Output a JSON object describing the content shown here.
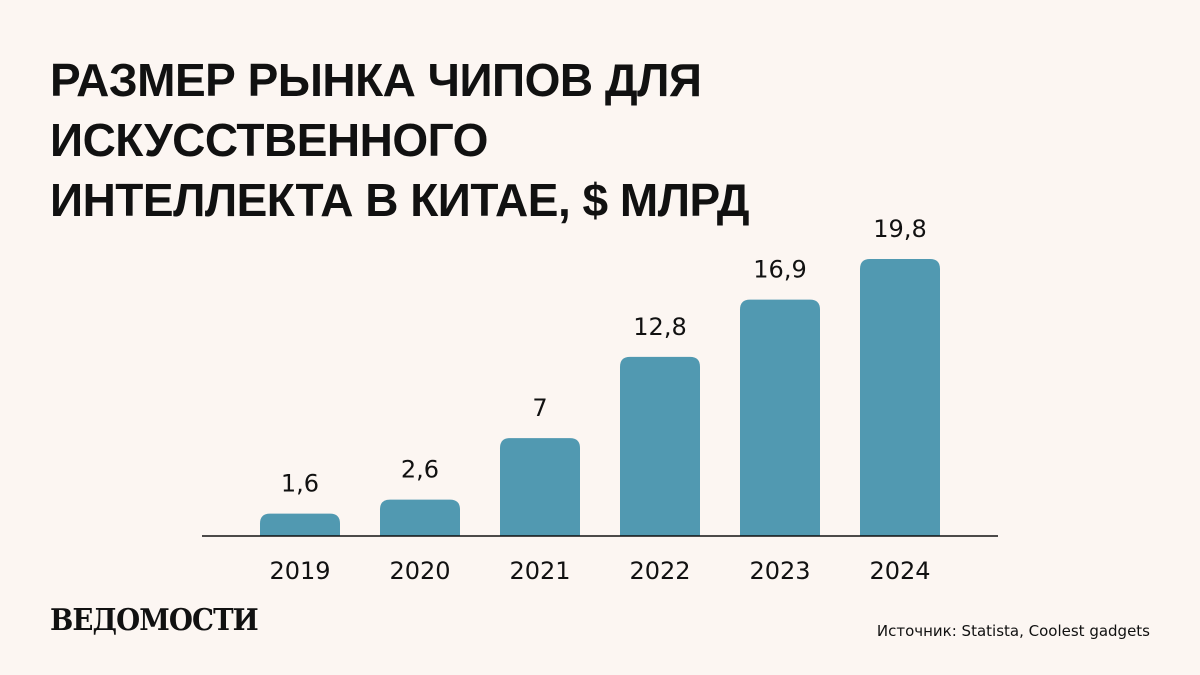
{
  "header": {
    "title_line1": "РАЗМЕР РЫНКА ЧИПОВ ДЛЯ ИСКУССТВЕННОГО",
    "title_line2": "ИНТЕЛЛЕКТА В КИТАЕ, $ МЛРД"
  },
  "chart_data": {
    "type": "bar",
    "categories": [
      "2019",
      "2020",
      "2021",
      "2022",
      "2023",
      "2024"
    ],
    "values": [
      1.6,
      2.6,
      7,
      12.8,
      16.9,
      19.8
    ],
    "value_labels": [
      "1,6",
      "2,6",
      "7",
      "12,8",
      "16,9",
      "19,8"
    ],
    "bar_color": "#5199b1",
    "grid": false,
    "ylim": [
      0,
      19.8
    ]
  },
  "footer": {
    "logo": "ВЕДОМОСТИ",
    "source": "Источник: Statista, Coolest gadgets"
  }
}
